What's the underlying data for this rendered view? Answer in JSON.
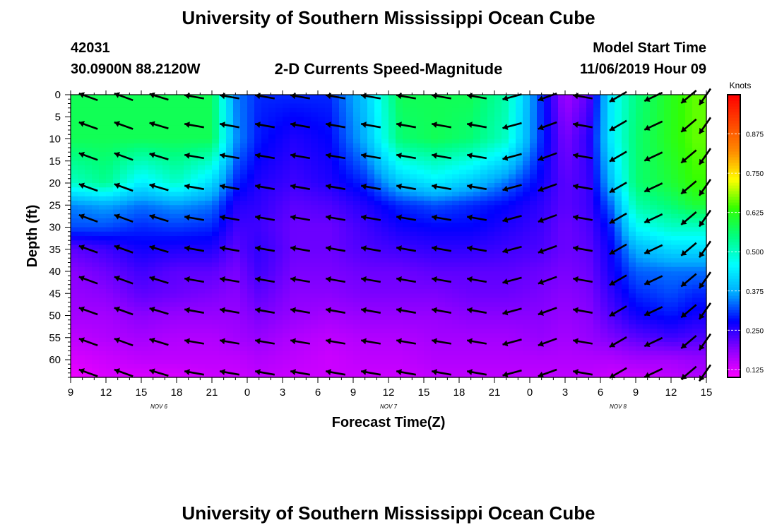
{
  "page": {
    "title_top": "University of Southern Mississippi Ocean Cube",
    "title_bottom": "University of Southern Mississippi Ocean Cube",
    "station_id": "42031",
    "location": "30.0900N 88.2120W",
    "subtitle": "2-D Currents Speed-Magnitude",
    "model_start_label": "Model Start Time",
    "model_start_value": "11/06/2019 Hour 09"
  },
  "chart_data": {
    "type": "heatmap",
    "title": "2-D Currents Speed-Magnitude",
    "xlabel": "Forecast Time(Z)",
    "ylabel": "Depth (ft)",
    "x_ticks": [
      "9",
      "12",
      "15",
      "18",
      "21",
      "0",
      "3",
      "6",
      "9",
      "12",
      "15",
      "18",
      "21",
      "0",
      "3",
      "6",
      "9",
      "12",
      "15"
    ],
    "x_range_hours": [
      0,
      54
    ],
    "date_labels": [
      {
        "label": "NOV 6",
        "hour": 7.5
      },
      {
        "label": "NOV 7",
        "hour": 27
      },
      {
        "label": "NOV 8",
        "hour": 46.5
      }
    ],
    "y_ticks": [
      0,
      5,
      10,
      15,
      20,
      25,
      30,
      35,
      40,
      45,
      50,
      55,
      60
    ],
    "y_range": [
      0,
      64
    ],
    "y_inverted": true,
    "colorbar": {
      "title": "Knots",
      "ticks": [
        "0.125",
        "0.250",
        "0.375",
        "0.500",
        "0.625",
        "0.750",
        "0.875"
      ],
      "range": [
        0.1,
        1.0
      ]
    },
    "speed_grid": {
      "hours": [
        0,
        3,
        6,
        9,
        12,
        14,
        16,
        19,
        22,
        25,
        28,
        31,
        34,
        37,
        40,
        42,
        44,
        46,
        48,
        51,
        53,
        54
      ],
      "depths": [
        0,
        10,
        20,
        25,
        30,
        35,
        40,
        45,
        50,
        55,
        60,
        64
      ],
      "values": [
        [
          0.58,
          0.58,
          0.58,
          0.58,
          0.58,
          0.35,
          0.3,
          0.3,
          0.3,
          0.4,
          0.58,
          0.58,
          0.58,
          0.52,
          0.3,
          0.17,
          0.22,
          0.45,
          0.55,
          0.62,
          0.66,
          0.66
        ],
        [
          0.58,
          0.58,
          0.58,
          0.58,
          0.58,
          0.36,
          0.29,
          0.26,
          0.28,
          0.38,
          0.56,
          0.58,
          0.56,
          0.5,
          0.3,
          0.2,
          0.25,
          0.45,
          0.56,
          0.62,
          0.66,
          0.66
        ],
        [
          0.5,
          0.54,
          0.44,
          0.5,
          0.42,
          0.3,
          0.26,
          0.24,
          0.26,
          0.3,
          0.4,
          0.44,
          0.4,
          0.34,
          0.27,
          0.22,
          0.24,
          0.4,
          0.56,
          0.6,
          0.64,
          0.64
        ],
        [
          0.35,
          0.37,
          0.34,
          0.36,
          0.34,
          0.26,
          0.25,
          0.22,
          0.23,
          0.26,
          0.3,
          0.32,
          0.3,
          0.28,
          0.25,
          0.22,
          0.24,
          0.34,
          0.52,
          0.56,
          0.6,
          0.6
        ],
        [
          0.32,
          0.32,
          0.3,
          0.31,
          0.3,
          0.24,
          0.24,
          0.21,
          0.21,
          0.24,
          0.27,
          0.28,
          0.28,
          0.26,
          0.24,
          0.21,
          0.23,
          0.3,
          0.46,
          0.5,
          0.5,
          0.5
        ],
        [
          0.22,
          0.24,
          0.27,
          0.26,
          0.26,
          0.22,
          0.25,
          0.21,
          0.21,
          0.23,
          0.24,
          0.25,
          0.25,
          0.24,
          0.23,
          0.21,
          0.22,
          0.28,
          0.38,
          0.42,
          0.42,
          0.42
        ],
        [
          0.19,
          0.21,
          0.24,
          0.22,
          0.22,
          0.2,
          0.24,
          0.2,
          0.2,
          0.21,
          0.21,
          0.22,
          0.22,
          0.22,
          0.21,
          0.2,
          0.21,
          0.27,
          0.33,
          0.34,
          0.34,
          0.34
        ],
        [
          0.18,
          0.19,
          0.22,
          0.21,
          0.2,
          0.19,
          0.22,
          0.19,
          0.19,
          0.2,
          0.2,
          0.2,
          0.21,
          0.21,
          0.2,
          0.19,
          0.2,
          0.25,
          0.3,
          0.32,
          0.3,
          0.3
        ],
        [
          0.17,
          0.17,
          0.19,
          0.18,
          0.18,
          0.18,
          0.2,
          0.18,
          0.17,
          0.18,
          0.18,
          0.18,
          0.19,
          0.19,
          0.19,
          0.18,
          0.19,
          0.23,
          0.27,
          0.29,
          0.27,
          0.27
        ],
        [
          0.15,
          0.16,
          0.17,
          0.16,
          0.16,
          0.17,
          0.18,
          0.16,
          0.15,
          0.16,
          0.16,
          0.17,
          0.17,
          0.17,
          0.18,
          0.17,
          0.18,
          0.2,
          0.22,
          0.24,
          0.23,
          0.23
        ],
        [
          0.13,
          0.14,
          0.15,
          0.15,
          0.15,
          0.15,
          0.16,
          0.15,
          0.14,
          0.15,
          0.15,
          0.16,
          0.16,
          0.16,
          0.16,
          0.16,
          0.16,
          0.16,
          0.17,
          0.17,
          0.18,
          0.18
        ],
        [
          0.11,
          0.13,
          0.13,
          0.13,
          0.14,
          0.14,
          0.15,
          0.14,
          0.14,
          0.14,
          0.14,
          0.15,
          0.15,
          0.15,
          0.15,
          0.15,
          0.15,
          0.14,
          0.14,
          0.15,
          0.16,
          0.16
        ]
      ]
    },
    "vector_field": {
      "hours": [
        1.5,
        4.5,
        7.5,
        10.5,
        13.5,
        16.5,
        19.5,
        22.5,
        25.5,
        28.5,
        31.5,
        34.5,
        37.5,
        40.5,
        43.5,
        46.5,
        49.5,
        52.5,
        54
      ],
      "depths": [
        0,
        7,
        14,
        21,
        28,
        35,
        42,
        49,
        56,
        63
      ],
      "default_direction_deg": 170,
      "direction_overrides": [
        {
          "hour": 1.5,
          "direction_deg": 160
        },
        {
          "hour": 4.5,
          "direction_deg": 160
        },
        {
          "hour": 7.5,
          "direction_deg": 163
        },
        {
          "hour": 10.5,
          "direction_deg": 170
        },
        {
          "hour": 37.5,
          "direction_deg": 195
        },
        {
          "hour": 40.5,
          "direction_deg": 200
        },
        {
          "hour": 46.5,
          "direction_deg": 210
        },
        {
          "hour": 49.5,
          "direction_deg": 205
        },
        {
          "hour": 52.5,
          "direction_deg": 220
        },
        {
          "hour": 54,
          "direction_deg": 235
        }
      ]
    }
  },
  "colors": {
    "ramp": [
      "#ff00ff",
      "#8a00ff",
      "#0000ff",
      "#00aaff",
      "#00ffff",
      "#00ff80",
      "#33ff00",
      "#ffff00",
      "#ff8c00",
      "#ff4500",
      "#ff0000"
    ],
    "arrow": "#000000",
    "frame": "#000000"
  }
}
